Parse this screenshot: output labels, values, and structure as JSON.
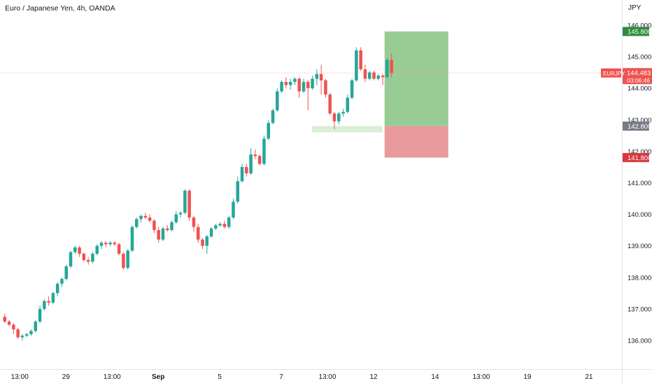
{
  "header": {
    "title": "Euro / Japanese Yen, 4h, OANDA"
  },
  "colors": {
    "up": "#26a69a",
    "down": "#ef5350",
    "target_zone": "#8ec58a",
    "stop_zone": "#e89596",
    "entry_zone": "#d9efd6",
    "target_tag": "#2e8b3e",
    "stop_tag": "#d9363e",
    "entry_tag": "#787b86",
    "current_tag": "#ef5350",
    "current_line": "#f7a8a8",
    "axis_text": "#131722",
    "axis_line": "#e0e3eb"
  },
  "chart_data": {
    "type": "candlestick",
    "ylabel": "JPY",
    "ylim": [
      135.2,
      146.25
    ],
    "y_ticks": [
      "136.000",
      "137.000",
      "138.000",
      "139.000",
      "140.000",
      "141.000",
      "142.000",
      "143.000",
      "144.000",
      "145.000",
      "146.000"
    ],
    "x_ticks": [
      {
        "label": "13:00",
        "bar": 3.5
      },
      {
        "label": "29",
        "bar": 14
      },
      {
        "label": "13:00",
        "bar": 24.5
      },
      {
        "label": "Sep",
        "bar": 35
      },
      {
        "label": "5",
        "bar": 49
      },
      {
        "label": "7",
        "bar": 63
      },
      {
        "label": "13:00",
        "bar": 73.5
      },
      {
        "label": "12",
        "bar": 84
      },
      {
        "label": "14",
        "bar": 98
      },
      {
        "label": "13:00",
        "bar": 108.5
      },
      {
        "label": "19",
        "bar": 119
      },
      {
        "label": "21",
        "bar": 133
      }
    ],
    "x_bar_range": [
      -1,
      140.5
    ],
    "candles": [
      [
        136.75,
        136.85,
        136.55,
        136.6
      ],
      [
        136.6,
        136.65,
        136.45,
        136.5
      ],
      [
        136.5,
        136.55,
        136.2,
        136.35
      ],
      [
        136.35,
        136.4,
        136.05,
        136.1
      ],
      [
        136.1,
        136.2,
        136.0,
        136.15
      ],
      [
        136.15,
        136.25,
        136.1,
        136.2
      ],
      [
        136.2,
        136.35,
        136.15,
        136.3
      ],
      [
        136.3,
        136.65,
        136.25,
        136.6
      ],
      [
        136.6,
        137.1,
        136.55,
        137.0
      ],
      [
        137.0,
        137.3,
        136.95,
        137.25
      ],
      [
        137.25,
        137.4,
        137.1,
        137.2
      ],
      [
        137.2,
        137.55,
        137.15,
        137.5
      ],
      [
        137.5,
        137.85,
        137.4,
        137.8
      ],
      [
        137.8,
        138.0,
        137.7,
        137.95
      ],
      [
        137.95,
        138.4,
        137.9,
        138.35
      ],
      [
        138.35,
        138.85,
        138.3,
        138.8
      ],
      [
        138.8,
        139.0,
        138.75,
        138.95
      ],
      [
        138.95,
        139.0,
        138.65,
        138.75
      ],
      [
        138.75,
        138.8,
        138.5,
        138.55
      ],
      [
        138.55,
        138.65,
        138.4,
        138.5
      ],
      [
        138.5,
        138.8,
        138.45,
        138.75
      ],
      [
        138.75,
        139.05,
        138.7,
        139.0
      ],
      [
        139.0,
        139.15,
        138.9,
        139.1
      ],
      [
        139.1,
        139.15,
        138.95,
        139.05
      ],
      [
        139.05,
        139.15,
        139.0,
        139.1
      ],
      [
        139.1,
        139.15,
        139.0,
        139.05
      ],
      [
        139.05,
        139.1,
        138.7,
        138.75
      ],
      [
        138.75,
        138.8,
        138.25,
        138.3
      ],
      [
        138.3,
        138.9,
        138.25,
        138.85
      ],
      [
        138.85,
        139.65,
        138.8,
        139.6
      ],
      [
        139.6,
        139.9,
        139.55,
        139.85
      ],
      [
        139.85,
        140.0,
        139.75,
        139.95
      ],
      [
        139.95,
        140.05,
        139.85,
        139.9
      ],
      [
        139.9,
        140.0,
        139.75,
        139.8
      ],
      [
        139.8,
        139.85,
        139.4,
        139.5
      ],
      [
        139.5,
        139.6,
        139.1,
        139.2
      ],
      [
        139.2,
        139.6,
        139.15,
        139.55
      ],
      [
        139.55,
        139.65,
        139.45,
        139.5
      ],
      [
        139.5,
        139.8,
        139.45,
        139.75
      ],
      [
        139.75,
        140.1,
        139.7,
        140.0
      ],
      [
        140.0,
        140.1,
        139.9,
        140.05
      ],
      [
        140.05,
        140.8,
        140.0,
        140.75
      ],
      [
        140.75,
        140.8,
        139.8,
        139.9
      ],
      [
        139.9,
        139.95,
        139.45,
        139.6
      ],
      [
        139.6,
        139.7,
        139.1,
        139.2
      ],
      [
        139.2,
        139.25,
        138.9,
        139.0
      ],
      [
        139.0,
        139.35,
        138.75,
        139.3
      ],
      [
        139.3,
        139.6,
        139.25,
        139.55
      ],
      [
        139.55,
        139.7,
        139.5,
        139.65
      ],
      [
        139.65,
        139.75,
        139.6,
        139.7
      ],
      [
        139.7,
        139.8,
        139.55,
        139.6
      ],
      [
        139.6,
        139.95,
        139.55,
        139.9
      ],
      [
        139.9,
        140.5,
        139.85,
        140.4
      ],
      [
        140.4,
        141.2,
        140.35,
        141.05
      ],
      [
        141.05,
        141.6,
        141.0,
        141.5
      ],
      [
        141.5,
        141.6,
        141.2,
        141.3
      ],
      [
        141.3,
        142.1,
        141.25,
        141.9
      ],
      [
        141.9,
        142.05,
        141.75,
        141.85
      ],
      [
        141.85,
        141.9,
        141.55,
        141.6
      ],
      [
        141.6,
        142.5,
        141.55,
        142.4
      ],
      [
        142.4,
        143.0,
        142.35,
        142.9
      ],
      [
        142.9,
        143.35,
        142.85,
        143.3
      ],
      [
        143.3,
        144.0,
        143.25,
        143.9
      ],
      [
        143.9,
        144.25,
        143.85,
        144.2
      ],
      [
        144.2,
        144.35,
        144.0,
        144.1
      ],
      [
        144.1,
        144.3,
        143.95,
        144.2
      ],
      [
        144.2,
        144.35,
        144.1,
        144.3
      ],
      [
        144.3,
        144.35,
        143.7,
        143.9
      ],
      [
        143.9,
        144.3,
        143.85,
        144.2
      ],
      [
        144.2,
        144.25,
        143.3,
        144.0
      ],
      [
        144.0,
        144.4,
        143.95,
        144.3
      ],
      [
        144.3,
        144.6,
        144.1,
        144.45
      ],
      [
        144.45,
        144.75,
        143.8,
        144.25
      ],
      [
        144.25,
        144.3,
        143.7,
        143.8
      ],
      [
        143.8,
        143.85,
        143.15,
        143.2
      ],
      [
        143.2,
        143.25,
        142.7,
        142.95
      ],
      [
        142.95,
        143.25,
        142.85,
        143.2
      ],
      [
        143.2,
        143.35,
        143.1,
        143.25
      ],
      [
        143.25,
        143.8,
        143.2,
        143.7
      ],
      [
        143.7,
        144.3,
        143.65,
        144.25
      ],
      [
        144.25,
        145.3,
        144.2,
        145.2
      ],
      [
        145.2,
        145.3,
        144.55,
        144.6
      ],
      [
        144.6,
        144.75,
        144.2,
        144.3
      ],
      [
        144.3,
        144.55,
        144.25,
        144.5
      ],
      [
        144.5,
        144.55,
        144.25,
        144.3
      ],
      [
        144.3,
        144.45,
        144.25,
        144.4
      ],
      [
        144.4,
        144.45,
        144.1,
        144.35
      ],
      [
        144.35,
        144.95,
        144.3,
        144.9
      ],
      [
        144.9,
        145.1,
        144.35,
        144.48
      ]
    ],
    "position": {
      "entry": 142.8,
      "target": 145.8,
      "stop": 141.8,
      "entry_zone": {
        "from_bar": 70,
        "to_bar": 86,
        "low": 142.6,
        "high": 142.8
      },
      "box_bars": [
        86.5,
        101
      ]
    },
    "price_tags": {
      "target": "145.800",
      "entry": "142.800",
      "stop": "141.800",
      "current_symbol": "EURJPY",
      "current_price": "144.483",
      "current_countdown": "03:06:46"
    },
    "current_price_value": 144.483
  }
}
